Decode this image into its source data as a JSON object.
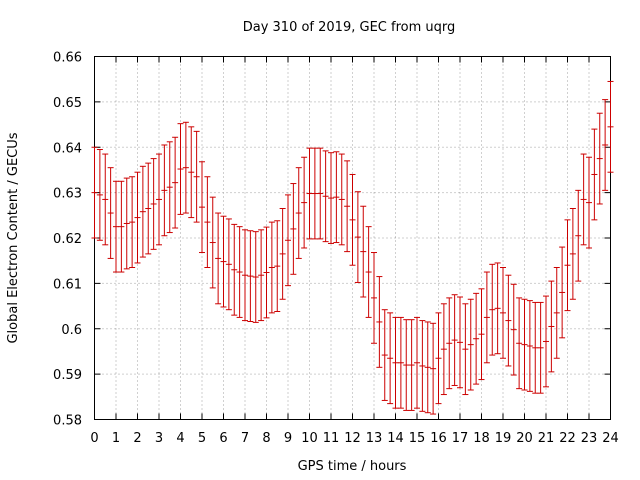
{
  "chart_data": {
    "type": "scatter",
    "title": "Day 310 of 2019, GEC from uqrg",
    "xlabel": "GPS time / hours",
    "ylabel": "Global Electron Content / GECUs",
    "xlim": [
      0,
      24
    ],
    "ylim": [
      0.58,
      0.66
    ],
    "grid": true,
    "x_ticks": [
      0,
      1,
      2,
      3,
      4,
      5,
      6,
      7,
      8,
      9,
      10,
      11,
      12,
      13,
      14,
      15,
      16,
      17,
      18,
      19,
      20,
      21,
      22,
      23,
      24
    ],
    "y_ticks": [
      0.58,
      0.59,
      0.6,
      0.61,
      0.62,
      0.63,
      0.64,
      0.65,
      0.66
    ],
    "y_tick_labels": [
      "0.58",
      "0.59",
      "0.6",
      "0.61",
      "0.62",
      "0.63",
      "0.64",
      "0.65",
      "0.66"
    ],
    "error_bar_color": "#cc0000",
    "error": 0.01,
    "series": [
      {
        "x": [
          0,
          0.25,
          0.5,
          0.75,
          1,
          1.25,
          1.5,
          1.75,
          2,
          2.25,
          2.5,
          2.75,
          3,
          3.25,
          3.5,
          3.75,
          4,
          4.25,
          4.5,
          4.75,
          5,
          5.25,
          5.5,
          5.75,
          6,
          6.25,
          6.5,
          6.75,
          7,
          7.25,
          7.5,
          7.75,
          8,
          8.25,
          8.5,
          8.75,
          9,
          9.25,
          9.5,
          9.75,
          10,
          10.25,
          10.5,
          10.75,
          11,
          11.25,
          11.5,
          11.75,
          12,
          12.25,
          12.5,
          12.75,
          13,
          13.25,
          13.5,
          13.75,
          14,
          14.25,
          14.5,
          14.75,
          15,
          15.25,
          15.5,
          15.75,
          16,
          16.25,
          16.5,
          16.75,
          17,
          17.25,
          17.5,
          17.75,
          18,
          18.25,
          18.5,
          18.75,
          19,
          19.25,
          19.5,
          19.75,
          20,
          20.25,
          20.5,
          20.75,
          21,
          21.25,
          21.5,
          21.75,
          22,
          22.25,
          22.5,
          22.75,
          23,
          23.25,
          23.5,
          23.75,
          24
        ],
        "y": [
          0.63,
          0.6295,
          0.6285,
          0.6255,
          0.6225,
          0.6225,
          0.6232,
          0.6235,
          0.6245,
          0.6258,
          0.6265,
          0.6275,
          0.6285,
          0.6305,
          0.6312,
          0.6322,
          0.6352,
          0.6355,
          0.6345,
          0.6335,
          0.6268,
          0.6235,
          0.619,
          0.6155,
          0.6148,
          0.6142,
          0.613,
          0.6125,
          0.6118,
          0.6116,
          0.6114,
          0.6118,
          0.6124,
          0.6135,
          0.6138,
          0.6165,
          0.6195,
          0.622,
          0.6255,
          0.6278,
          0.6298,
          0.6298,
          0.6298,
          0.6292,
          0.6288,
          0.629,
          0.6285,
          0.627,
          0.624,
          0.6202,
          0.617,
          0.6125,
          0.6068,
          0.6015,
          0.5942,
          0.5935,
          0.5925,
          0.5925,
          0.592,
          0.592,
          0.5925,
          0.5918,
          0.5915,
          0.5912,
          0.5935,
          0.5955,
          0.5968,
          0.5975,
          0.597,
          0.5955,
          0.5965,
          0.5978,
          0.5988,
          0.6025,
          0.6042,
          0.6045,
          0.6035,
          0.6018,
          0.5998,
          0.5968,
          0.5965,
          0.5962,
          0.5958,
          0.5958,
          0.5972,
          0.6005,
          0.6035,
          0.608,
          0.614,
          0.6165,
          0.6205,
          0.6285,
          0.6278,
          0.634,
          0.6375,
          0.6405,
          0.6445
        ]
      }
    ]
  }
}
